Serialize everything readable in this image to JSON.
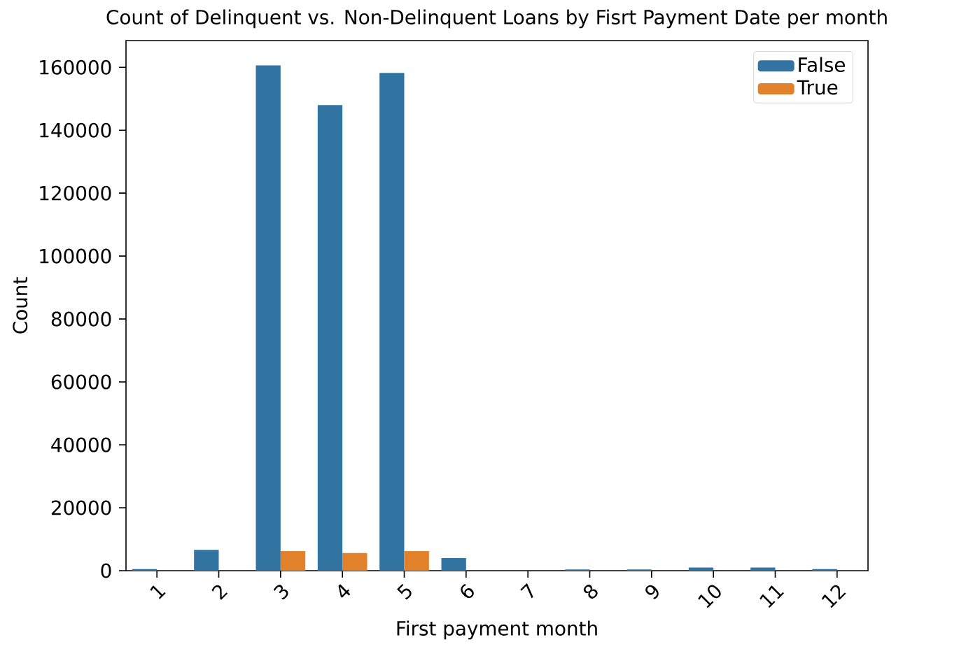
{
  "chart_data": {
    "type": "bar",
    "title": "Count of Delinquent vs. Non-Delinquent Loans by Fisrt Payment Date per month",
    "xlabel": "First payment month",
    "ylabel": "Count",
    "categories": [
      "1",
      "2",
      "3",
      "4",
      "5",
      "6",
      "7",
      "8",
      "9",
      "10",
      "11",
      "12"
    ],
    "series": [
      {
        "name": "False",
        "color": "#3274a1",
        "values": [
          500,
          6600,
          160600,
          148000,
          158200,
          4000,
          0,
          400,
          400,
          1000,
          1000,
          500
        ]
      },
      {
        "name": "True",
        "color": "#e1812c",
        "values": [
          0,
          0,
          6200,
          5600,
          6200,
          0,
          0,
          0,
          0,
          0,
          0,
          0
        ]
      }
    ],
    "ylim": [
      0,
      168500
    ],
    "yticks": [
      0,
      20000,
      40000,
      60000,
      80000,
      100000,
      120000,
      140000,
      160000
    ],
    "legend": "top right",
    "grid": false
  }
}
